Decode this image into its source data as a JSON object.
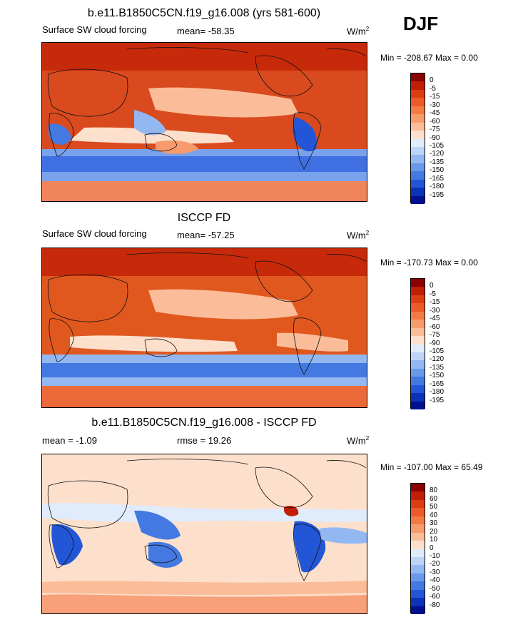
{
  "season": "DJF",
  "units_base": "W/m",
  "units_exp": "2",
  "panels": [
    {
      "title": "b.e11.B1850C5CN.f19_g16.008 (yrs 581-600)",
      "left_label": "Surface SW cloud forcing",
      "center_label": "mean= -58.35",
      "minmax": "Min = -208.67 Max =   0.00"
    },
    {
      "title": "ISCCP FD",
      "left_label": "Surface SW cloud forcing",
      "center_label": "mean= -57.25",
      "minmax": "Min = -170.73 Max =   0.00"
    },
    {
      "title": "b.e11.B1850C5CN.f19_g16.008 - ISCCP FD",
      "left_label": "mean =  -1.09",
      "center_label": "rmse =  19.26",
      "minmax": "Min = -107.00 Max =  65.49"
    }
  ],
  "colorbars": {
    "absolute": {
      "labels": [
        "0",
        "-5",
        "-15",
        "-30",
        "-45",
        "-60",
        "-75",
        "-90",
        "-105",
        "-120",
        "-135",
        "-150",
        "-165",
        "-180",
        "-195"
      ],
      "colors": [
        "#8b0000",
        "#c01f06",
        "#de3d12",
        "#ec5a27",
        "#f37a45",
        "#f79b6c",
        "#fbbd99",
        "#fde0cc",
        "#e0ebfb",
        "#bcd4f7",
        "#93b7f1",
        "#6a98ea",
        "#4479e2",
        "#2356d6",
        "#0c32b8",
        "#00108f"
      ]
    },
    "difference": {
      "labels": [
        "80",
        "60",
        "50",
        "40",
        "30",
        "20",
        "10",
        "0",
        "-10",
        "-20",
        "-30",
        "-40",
        "-50",
        "-60",
        "-80"
      ],
      "colors": [
        "#8b0000",
        "#c01f06",
        "#de3d12",
        "#ec5a27",
        "#f37a45",
        "#f79b6c",
        "#fbbd99",
        "#fde0cc",
        "#e0ebfb",
        "#bcd4f7",
        "#93b7f1",
        "#6a98ea",
        "#4479e2",
        "#2356d6",
        "#0c32b8",
        "#00108f"
      ]
    }
  },
  "chart_data": [
    {
      "type": "heatmap",
      "title": "b.e11.B1850C5CN.f19_g16.008 (yrs 581-600)",
      "variable": "Surface SW cloud forcing",
      "mean": -58.35,
      "min": -208.67,
      "max": 0.0,
      "units": "W/m2",
      "levels": [
        0,
        -5,
        -15,
        -30,
        -45,
        -60,
        -75,
        -90,
        -105,
        -120,
        -135,
        -150,
        -165,
        -180,
        -195
      ]
    },
    {
      "type": "heatmap",
      "title": "ISCCP FD",
      "variable": "Surface SW cloud forcing",
      "mean": -57.25,
      "min": -170.73,
      "max": 0.0,
      "units": "W/m2",
      "levels": [
        0,
        -5,
        -15,
        -30,
        -45,
        -60,
        -75,
        -90,
        -105,
        -120,
        -135,
        -150,
        -165,
        -180,
        -195
      ]
    },
    {
      "type": "heatmap",
      "title": "b.e11.B1850C5CN.f19_g16.008 - ISCCP FD",
      "mean": -1.09,
      "rmse": 19.26,
      "min": -107.0,
      "max": 65.49,
      "units": "W/m2",
      "levels": [
        80,
        60,
        50,
        40,
        30,
        20,
        10,
        0,
        -10,
        -20,
        -30,
        -40,
        -50,
        -60,
        -80
      ]
    }
  ]
}
